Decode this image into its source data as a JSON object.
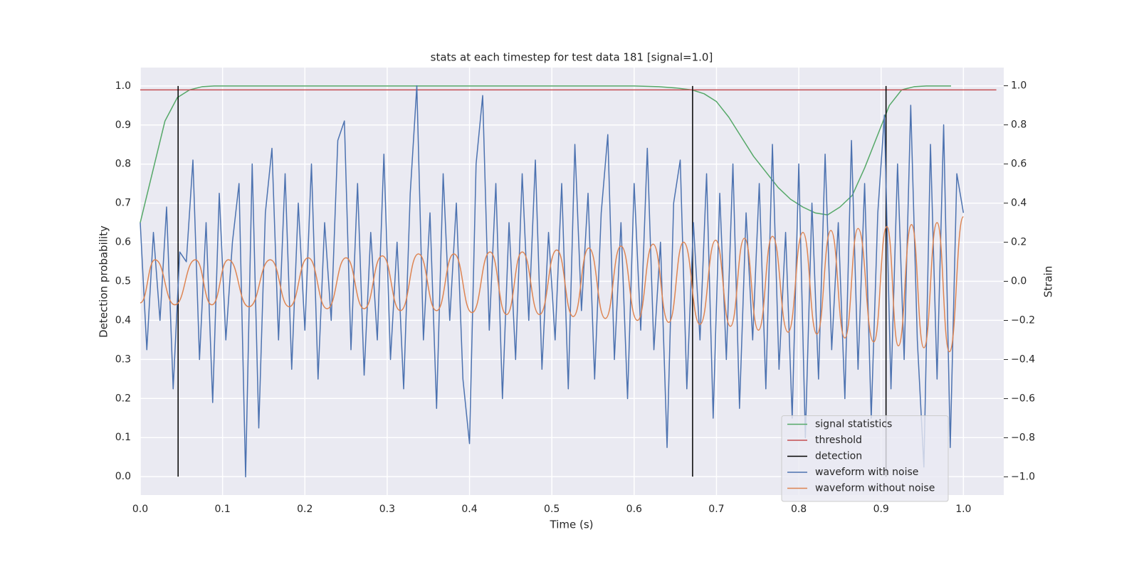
{
  "chart_data": {
    "type": "line",
    "title": "stats at each timestep for test data 181 [signal=1.0]",
    "x_label": "Time (s)",
    "y_label": "Detection probability",
    "y2_label": "Strain",
    "xlim": [
      0,
      1.049
    ],
    "xticks": [
      {
        "value": 0,
        "label": "0.0"
      },
      0.1,
      0.2,
      0.3,
      0.4,
      0.5,
      0.6,
      0.7,
      0.8,
      0.9,
      {
        "value": 1,
        "label": "1.0"
      }
    ],
    "ylim": [
      -0.047,
      1.047
    ],
    "yticks": [
      {
        "value": 0,
        "label": "0.0"
      },
      0.1,
      0.2,
      0.3,
      0.4,
      0.5,
      0.6,
      0.7,
      0.8,
      0.9,
      {
        "value": 1,
        "label": "1.0"
      }
    ],
    "y2lim": [
      -1.093,
      1.093
    ],
    "y2ticks": [
      {
        "value": -1,
        "label": "−1.0"
      },
      {
        "value": -0.8,
        "label": "−0.8"
      },
      {
        "value": -0.6,
        "label": "−0.6"
      },
      {
        "value": -0.4,
        "label": "−0.4"
      },
      {
        "value": -0.2,
        "label": "−0.2"
      },
      {
        "value": 0,
        "label": "0.0"
      },
      0.2,
      0.4,
      0.6,
      0.8,
      {
        "value": 1,
        "label": "1.0"
      }
    ],
    "grid": true,
    "legend": "lower right",
    "series": [
      {
        "name": "signal statistics",
        "color": "#55a868",
        "x": [
          0,
          0.015,
          0.03,
          0.045,
          0.06,
          0.075,
          0.09,
          0.6,
          0.63,
          0.65,
          0.67,
          0.685,
          0.7,
          0.715,
          0.73,
          0.745,
          0.76,
          0.775,
          0.79,
          0.805,
          0.82,
          0.835,
          0.85,
          0.865,
          0.88,
          0.895,
          0.91,
          0.925,
          0.94,
          0.955,
          0.985
        ],
        "values": [
          0.65,
          0.78,
          0.91,
          0.97,
          0.99,
          0.998,
          1.0,
          1.0,
          0.998,
          0.995,
          0.99,
          0.98,
          0.96,
          0.92,
          0.87,
          0.82,
          0.78,
          0.74,
          0.71,
          0.69,
          0.675,
          0.67,
          0.69,
          0.72,
          0.79,
          0.87,
          0.95,
          0.99,
          0.998,
          1.0,
          1.0
        ]
      },
      {
        "name": "threshold",
        "color": "#c44e52",
        "x": [
          0,
          1.04
        ],
        "values": [
          0.99,
          0.99
        ]
      },
      {
        "name": "detection",
        "color": "#000000",
        "x": [
          0.046,
          0.671,
          0.906
        ],
        "ymin": 0,
        "ymax": 1
      },
      {
        "name": "waveform with noise",
        "color": "#4c72b0",
        "axis": "y2",
        "x": [
          0,
          0.008,
          0.016,
          0.024,
          0.032,
          0.04,
          0.048,
          0.056,
          0.064,
          0.072,
          0.08,
          0.088,
          0.096,
          0.104,
          0.112,
          0.12,
          0.128,
          0.136,
          0.144,
          0.152,
          0.16,
          0.168,
          0.176,
          0.184,
          0.192,
          0.2,
          0.208,
          0.216,
          0.224,
          0.232,
          0.24,
          0.248,
          0.256,
          0.264,
          0.272,
          0.28,
          0.288,
          0.296,
          0.304,
          0.312,
          0.32,
          0.328,
          0.336,
          0.344,
          0.352,
          0.36,
          0.368,
          0.376,
          0.384,
          0.392,
          0.4,
          0.408,
          0.416,
          0.424,
          0.432,
          0.44,
          0.448,
          0.456,
          0.464,
          0.472,
          0.48,
          0.488,
          0.496,
          0.504,
          0.512,
          0.52,
          0.528,
          0.536,
          0.544,
          0.552,
          0.56,
          0.568,
          0.576,
          0.584,
          0.592,
          0.6,
          0.608,
          0.616,
          0.624,
          0.632,
          0.64,
          0.648,
          0.656,
          0.664,
          0.672,
          0.68,
          0.688,
          0.696,
          0.704,
          0.712,
          0.72,
          0.728,
          0.736,
          0.744,
          0.752,
          0.76,
          0.768,
          0.776,
          0.784,
          0.792,
          0.8,
          0.808,
          0.816,
          0.824,
          0.832,
          0.84,
          0.848,
          0.856,
          0.864,
          0.872,
          0.88,
          0.888,
          0.896,
          0.904,
          0.912,
          0.92,
          0.928,
          0.936,
          0.944,
          0.952,
          0.96,
          0.968,
          0.976,
          0.984,
          0.992,
          1.0
        ],
        "values": [
          0.3,
          -0.35,
          0.25,
          -0.2,
          0.38,
          -0.55,
          0.15,
          0.1,
          0.62,
          -0.4,
          0.3,
          -0.62,
          0.45,
          -0.3,
          0.2,
          0.5,
          -1.0,
          0.6,
          -0.75,
          0.35,
          0.68,
          -0.3,
          0.55,
          -0.45,
          0.4,
          -0.25,
          0.6,
          -0.5,
          0.3,
          -0.2,
          0.72,
          0.82,
          -0.35,
          0.5,
          -0.48,
          0.25,
          -0.3,
          0.65,
          -0.4,
          0.2,
          -0.55,
          0.45,
          1.0,
          -0.3,
          0.35,
          -0.65,
          0.55,
          -0.2,
          0.4,
          -0.5,
          -0.83,
          0.6,
          0.95,
          -0.25,
          0.5,
          -0.6,
          0.3,
          -0.4,
          0.55,
          -0.2,
          0.62,
          -0.45,
          0.25,
          -0.3,
          0.5,
          -0.55,
          0.7,
          -0.15,
          0.45,
          -0.5,
          0.35,
          0.75,
          -0.4,
          0.3,
          -0.6,
          0.5,
          -0.25,
          0.68,
          -0.35,
          0.2,
          -0.85,
          0.4,
          0.62,
          -0.55,
          0.3,
          -0.3,
          0.55,
          -0.7,
          0.45,
          -0.4,
          0.6,
          -0.65,
          0.35,
          -0.3,
          0.5,
          -0.55,
          0.7,
          -0.45,
          0.25,
          -0.7,
          0.6,
          -0.8,
          0.4,
          -0.5,
          0.65,
          -0.35,
          0.3,
          -0.6,
          0.72,
          -0.45,
          0.5,
          -0.7,
          0.35,
          0.85,
          -0.55,
          0.6,
          -0.4,
          0.9,
          -0.3,
          -0.95,
          0.7,
          -0.5,
          0.8,
          -0.85,
          0.55,
          0.35
        ]
      },
      {
        "name": "waveform without noise",
        "color": "#dd8452",
        "axis": "y2",
        "smooth": true,
        "x": [
          0,
          0.018,
          0.042,
          0.067,
          0.087,
          0.107,
          0.132,
          0.158,
          0.181,
          0.204,
          0.227,
          0.25,
          0.272,
          0.294,
          0.316,
          0.338,
          0.36,
          0.381,
          0.403,
          0.425,
          0.445,
          0.464,
          0.485,
          0.506,
          0.526,
          0.545,
          0.565,
          0.584,
          0.604,
          0.623,
          0.642,
          0.66,
          0.68,
          0.699,
          0.717,
          0.734,
          0.751,
          0.768,
          0.787,
          0.805,
          0.822,
          0.839,
          0.856,
          0.872,
          0.891,
          0.907,
          0.921,
          0.937,
          0.952,
          0.968,
          0.983,
          1.0
        ],
        "values": [
          -0.11,
          0.11,
          -0.12,
          0.11,
          -0.12,
          0.11,
          -0.13,
          0.11,
          -0.13,
          0.12,
          -0.14,
          0.12,
          -0.14,
          0.13,
          -0.15,
          0.14,
          -0.15,
          0.14,
          -0.16,
          0.15,
          -0.17,
          0.15,
          -0.17,
          0.16,
          -0.18,
          0.17,
          -0.19,
          0.18,
          -0.2,
          0.19,
          -0.21,
          0.2,
          -0.22,
          0.21,
          -0.23,
          0.22,
          -0.25,
          0.23,
          -0.26,
          0.25,
          -0.27,
          0.26,
          -0.29,
          0.27,
          -0.31,
          0.28,
          -0.33,
          0.29,
          -0.34,
          0.3,
          -0.36,
          0.33
        ]
      }
    ]
  }
}
